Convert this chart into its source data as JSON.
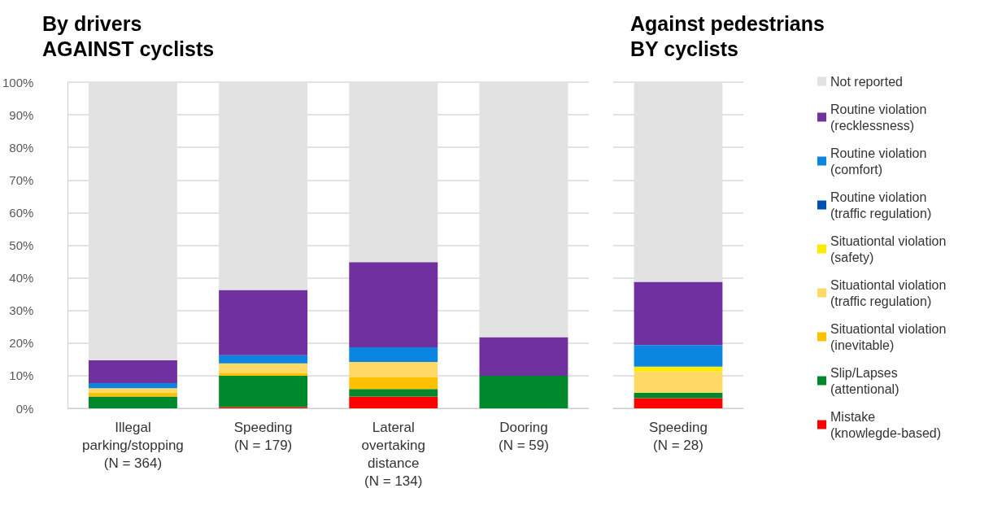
{
  "chart_data": [
    {
      "type": "bar",
      "title": "By drivers\nAGAINST cyclists",
      "stacked": true,
      "grid": "y",
      "categories": [
        "Illegal\nparking/stopping\n(N = 364)",
        "Speeding\n(N = 179)",
        "Lateral\novertaking\ndistance\n(N = 134)",
        "Dooring\n(N = 59)"
      ],
      "ylim": [
        0,
        100
      ],
      "yticks": [
        {
          "value": 0,
          "label": "0%"
        },
        {
          "value": 10,
          "label": "10%"
        },
        {
          "value": 20,
          "label": "20%"
        },
        {
          "value": 30,
          "label": "30%"
        },
        {
          "value": 40,
          "label": "40%"
        },
        {
          "value": 50,
          "label": "50%"
        },
        {
          "value": 60,
          "label": "60%"
        },
        {
          "value": 70,
          "label": "70%"
        },
        {
          "value": 80,
          "label": "80%"
        },
        {
          "value": 90,
          "label": "90%"
        },
        {
          "value": 100,
          "label": "100%"
        }
      ],
      "series": [
        {
          "color": "#ff0000",
          "values": [
            0,
            0.4,
            3.6,
            0
          ]
        },
        {
          "color": "#00892c",
          "values": [
            3.6,
            9.6,
            2.3,
            10
          ]
        },
        {
          "color": "#ffc000",
          "values": [
            1.2,
            0.7,
            3.6,
            0
          ]
        },
        {
          "color": "#ffd966",
          "values": [
            1.4,
            3.1,
            4.7,
            0
          ]
        },
        {
          "color": "#ffeb00",
          "values": [
            0,
            0,
            0,
            0
          ]
        },
        {
          "color": "#0050b4",
          "values": [
            0,
            0,
            0,
            0
          ]
        },
        {
          "color": "#0a86e0",
          "values": [
            1.5,
            2.5,
            4.5,
            0
          ]
        },
        {
          "color": "#7030a0",
          "values": [
            7,
            20,
            26.1,
            11.8
          ]
        },
        {
          "color": "#e2e2e2",
          "values": [
            85.3,
            63.7,
            55.2,
            78.2
          ]
        }
      ]
    },
    {
      "type": "bar",
      "title": "Against pedestrians\nBY cyclists",
      "stacked": true,
      "grid": "y",
      "legend": "right",
      "tick_labels": "x",
      "categories": [
        "Speeding\n(N = 28)"
      ],
      "ylim": [
        0,
        100
      ],
      "yticks": [
        0,
        10,
        20,
        30,
        40,
        50,
        60,
        70,
        80,
        90,
        100
      ],
      "series": [
        {
          "name": "Mistake\n(knowlegde-based)",
          "color": "#ff0000",
          "values": [
            3.1
          ]
        },
        {
          "name": "Slip/Lapses\n(attentional)",
          "color": "#00892c",
          "values": [
            1.7
          ]
        },
        {
          "name": "Situationtal violation\n(inevitable)",
          "color": "#ffc000",
          "values": [
            0
          ]
        },
        {
          "name": "Situationtal violation\n(traffic regulation)",
          "color": "#ffd966",
          "values": [
            6.5
          ]
        },
        {
          "name": "Situationtal violation\n(safety)",
          "color": "#ffeb00",
          "values": [
            1.5
          ]
        },
        {
          "name": "Routine violation\n(traffic regulation)",
          "color": "#0050b4",
          "values": [
            0
          ]
        },
        {
          "name": "Routine violation\n(comfort)",
          "color": "#0a86e0",
          "values": [
            6.6
          ]
        },
        {
          "name": "Routine violation\n(recklessness)",
          "color": "#7030a0",
          "values": [
            19.4
          ]
        },
        {
          "name": "Not reported",
          "color": "#e2e2e2",
          "values": [
            61.2
          ]
        }
      ]
    }
  ]
}
